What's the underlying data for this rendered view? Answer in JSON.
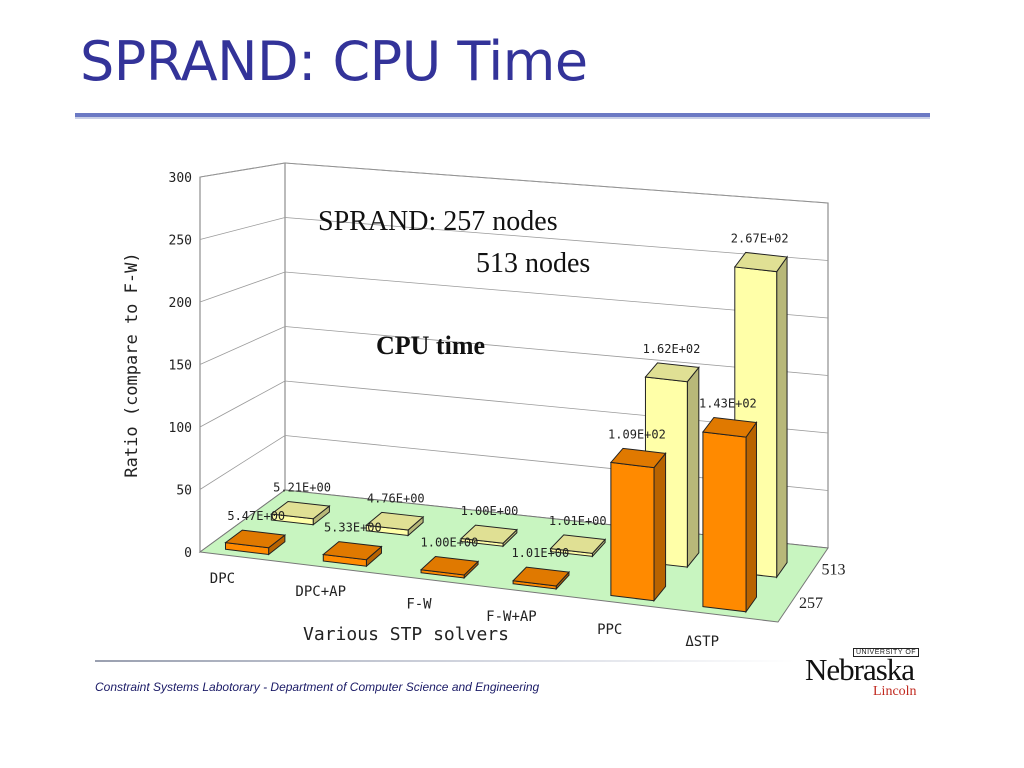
{
  "slide": {
    "title": "SPRAND: CPU Time",
    "footer": "Constraint Systems Labotorary - Department of Computer Science and Engineering",
    "logo": {
      "university_of": "UNIVERSITY OF",
      "name": "Nebraska",
      "campus": "Lincoln"
    }
  },
  "chart_data": {
    "type": "bar",
    "title": "CPU time",
    "ylabel": "Ratio (compare to F-W)",
    "xlabel": "Various STP solvers",
    "ylim": [
      0,
      300
    ],
    "yticks": [
      "0",
      "50",
      "100",
      "150",
      "200",
      "250",
      "300"
    ],
    "categories": [
      "DPC",
      "DPC+AP",
      "F-W",
      "F-W+AP",
      "PPC",
      "ΔSTP"
    ],
    "legend_text": [
      "SPRAND:  257 nodes",
      "513 nodes"
    ],
    "series": [
      {
        "name": "257",
        "color": "#ff8a00",
        "values": [
          5.47,
          5.33,
          1.0,
          1.01,
          109,
          143
        ],
        "labels": [
          "5.47E+00",
          "5.33E+00",
          "1.00E+00",
          "1.01E+00",
          "1.09E+02",
          "1.43E+02"
        ]
      },
      {
        "name": "513",
        "color": "#ffffa8",
        "values": [
          5.21,
          4.76,
          1.0,
          1.01,
          162,
          267
        ],
        "labels": [
          "5.21E+00",
          "4.76E+00",
          "1.00E+00",
          "1.01E+00",
          "1.62E+02",
          "2.67E+02"
        ]
      }
    ]
  }
}
